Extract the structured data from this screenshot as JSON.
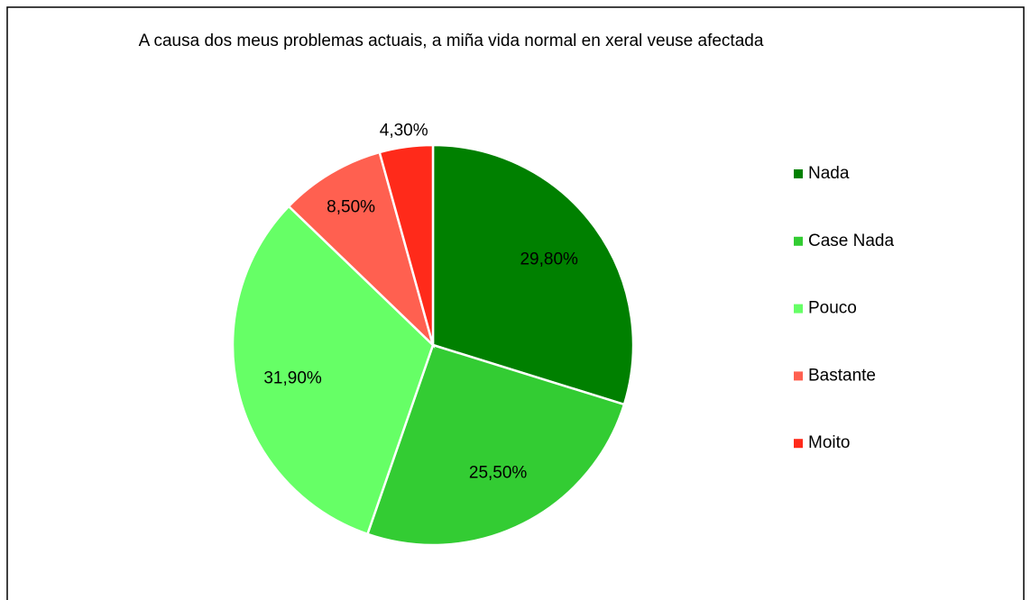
{
  "chart_data": {
    "type": "pie",
    "title": "A causa dos meus problemas actuais, a miña vida normal en xeral veuse afectada",
    "categories": [
      "Nada",
      "Case Nada",
      "Pouco",
      "Bastante",
      "Moito"
    ],
    "values": [
      29.8,
      25.5,
      31.9,
      8.5,
      4.3
    ],
    "value_labels": [
      "29,80%",
      "25,50%",
      "31,90%",
      "8,50%",
      "4,30%"
    ],
    "colors": [
      "#008000",
      "#33cc33",
      "#66ff66",
      "#ff6050",
      "#ff2a1a"
    ],
    "legend": "right"
  }
}
